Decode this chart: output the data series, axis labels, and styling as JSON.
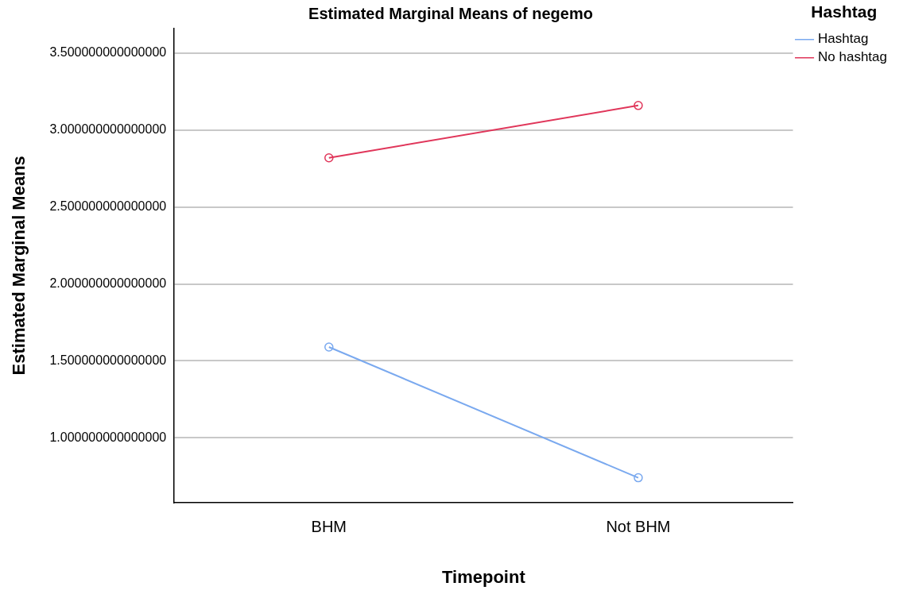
{
  "chart_data": {
    "type": "line",
    "title": "Estimated Marginal Means of negemo",
    "xlabel": "Timepoint",
    "ylabel": "Estimated Marginal Means",
    "legend_title": "Hashtag",
    "categories": [
      "BHM",
      "Not BHM"
    ],
    "series": [
      {
        "name": "Hashtag",
        "color": "#7aa9ef",
        "values": [
          1.59,
          0.74
        ]
      },
      {
        "name": "No hashtag",
        "color": "#e0365a",
        "values": [
          2.82,
          3.16
        ]
      }
    ],
    "ylim": [
      0.58,
      3.66
    ],
    "yticks": [
      {
        "value": 1,
        "label": "1.000000000000000"
      },
      {
        "value": 1.5,
        "label": "1.500000000000000"
      },
      {
        "value": 2,
        "label": "2.000000000000000"
      },
      {
        "value": 2.5,
        "label": "2.500000000000000"
      },
      {
        "value": 3,
        "label": "3.000000000000000"
      },
      {
        "value": 3.5,
        "label": "3.500000000000000"
      }
    ],
    "grid": "y",
    "legend": "top right",
    "marker": "circle",
    "line_style": "solid"
  }
}
